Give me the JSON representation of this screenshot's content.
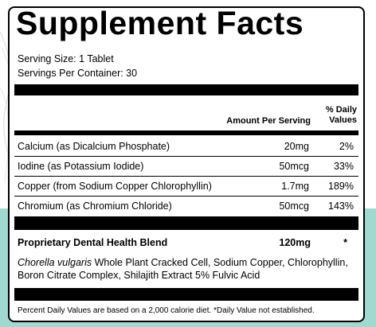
{
  "title": "Supplement Facts",
  "serving_size": "Serving Size: 1 Tablet",
  "servings_per_container": "Servings Per Container: 30",
  "header": {
    "amount_label": "Amount Per Serving",
    "dv_label_line1": "% Daily",
    "dv_label_line2": "Values"
  },
  "nutrients": [
    {
      "name": "Calcium (as Dicalcium Phosphate)",
      "amount": "20mg",
      "dv": "2%"
    },
    {
      "name": "Iodine (as Potassium Iodide)",
      "amount": "50mcg",
      "dv": "33%"
    },
    {
      "name": "Copper (from Sodium Copper Chlorophyllin)",
      "amount": "1.7mg",
      "dv": "189%"
    },
    {
      "name": "Chromium (as Chromium Chloride)",
      "amount": "50mcg",
      "dv": "143%"
    }
  ],
  "blend": {
    "name": "Proprietary Dental Health Blend",
    "amount": "120mg",
    "dv": "*"
  },
  "ingredients": {
    "italic_lead": "Chorella vulgaris",
    "rest": " Whole Plant Cracked Cell, Sodium Copper, Chlorophyllin, Boron Citrate Complex, Shilajith Extract 5% Fulvic Acid"
  },
  "footnote": "Percent Daily Values are based on a 2,000 calorie diet. *Daily Value not established.",
  "colors": {
    "background_accent": "#9fd9cf",
    "ink": "#000000"
  }
}
